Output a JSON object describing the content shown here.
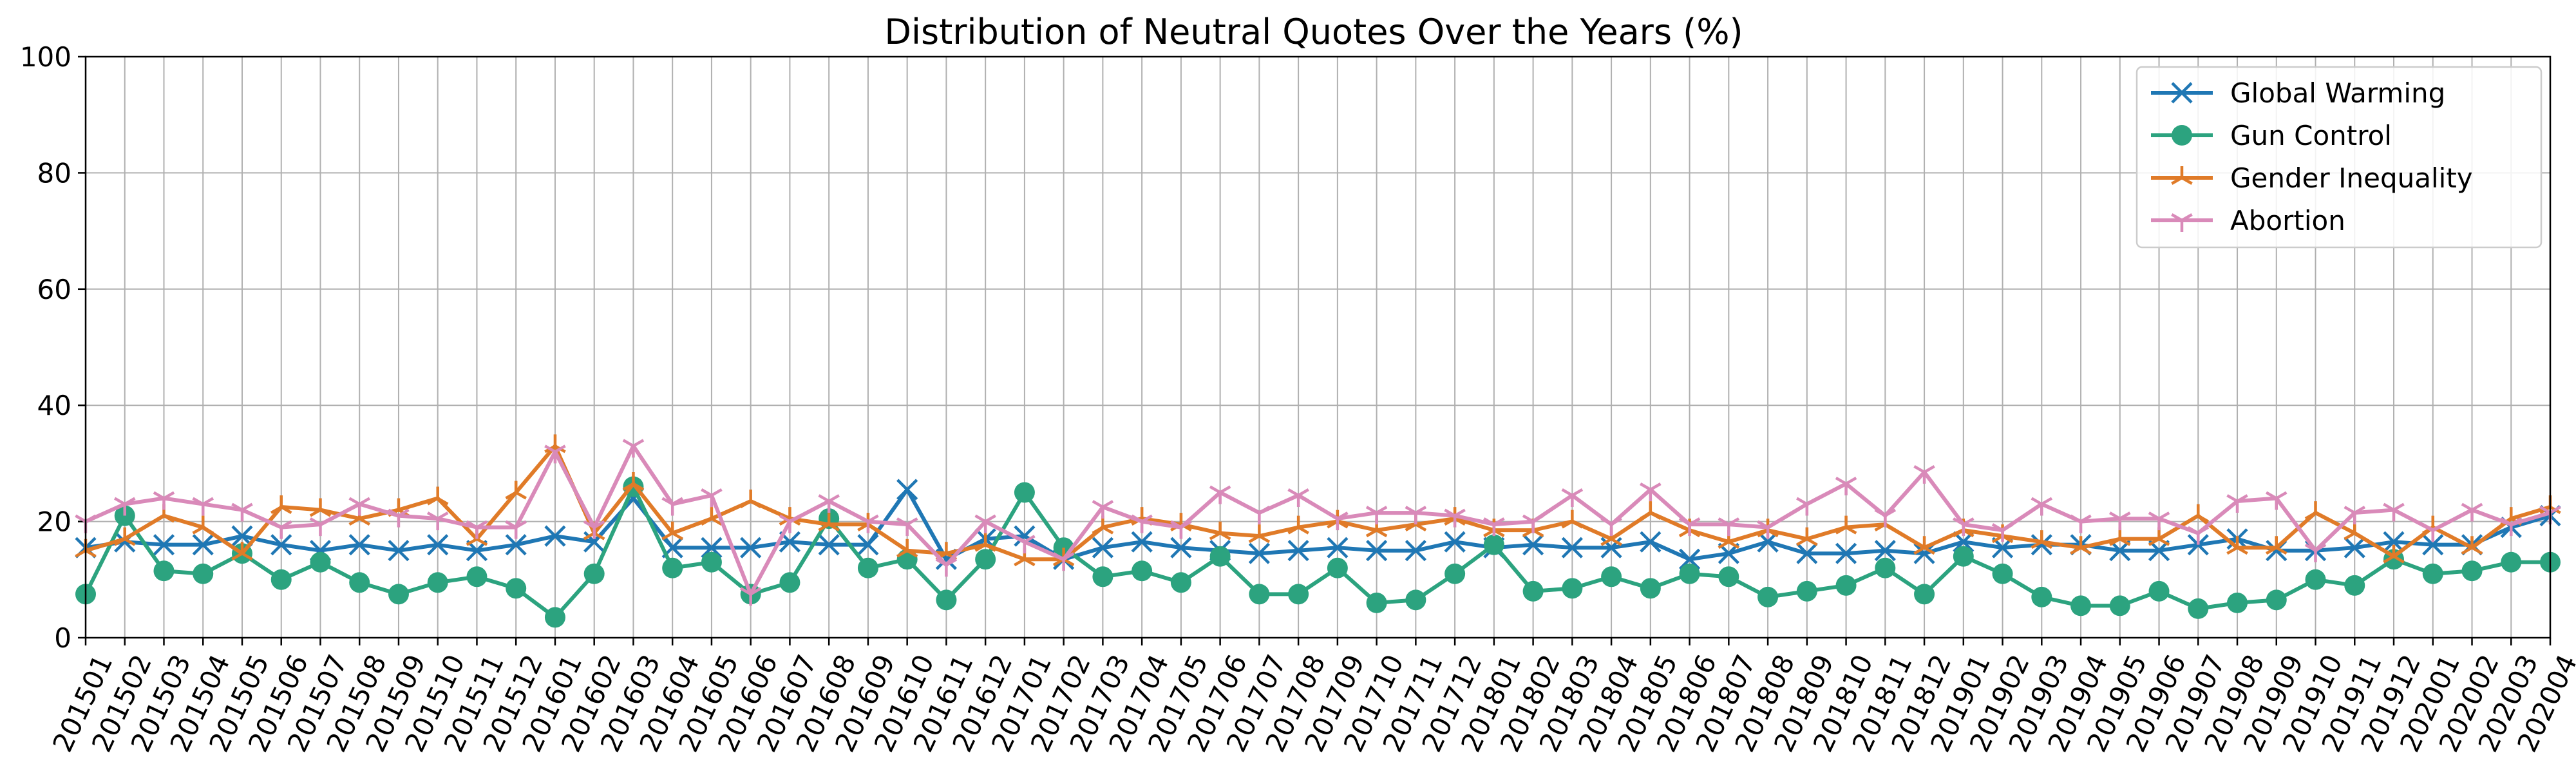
{
  "chart_data": {
    "type": "line",
    "title": "Distribution of Neutral Quotes Over the Years (%)",
    "xlabel": "",
    "ylabel": "",
    "ylim": [
      0,
      100
    ],
    "yticks": [
      0,
      20,
      40,
      60,
      80,
      100
    ],
    "grid": true,
    "legend_position": "top-right",
    "categories": [
      "201501",
      "201502",
      "201503",
      "201504",
      "201505",
      "201506",
      "201507",
      "201508",
      "201509",
      "201510",
      "201511",
      "201512",
      "201601",
      "201602",
      "201603",
      "201604",
      "201605",
      "201606",
      "201607",
      "201608",
      "201609",
      "201610",
      "201611",
      "201612",
      "201701",
      "201702",
      "201703",
      "201704",
      "201705",
      "201706",
      "201707",
      "201708",
      "201709",
      "201710",
      "201711",
      "201712",
      "201801",
      "201802",
      "201803",
      "201804",
      "201805",
      "201806",
      "201807",
      "201808",
      "201809",
      "201810",
      "201811",
      "201812",
      "201901",
      "201902",
      "201903",
      "201904",
      "201905",
      "201906",
      "201907",
      "201908",
      "201909",
      "201910",
      "201911",
      "201912",
      "202001",
      "202002",
      "202003",
      "202004"
    ],
    "series": [
      {
        "name": "Global Warming",
        "color": "#1f77b4",
        "marker": "x",
        "values": [
          15.5,
          16.5,
          16,
          16,
          17.5,
          16,
          15,
          16,
          15,
          16,
          15,
          16,
          17.5,
          16.5,
          24,
          15.5,
          15.5,
          15.5,
          16.5,
          16,
          16,
          25.5,
          13.5,
          17,
          17.5,
          13.5,
          15.5,
          16.5,
          15.5,
          15,
          14.5,
          15,
          15.5,
          15,
          15,
          16.5,
          15.5,
          16,
          15.5,
          15.5,
          16.5,
          13.5,
          14.5,
          16.5,
          14.5,
          14.5,
          15,
          14.5,
          16.5,
          15.5,
          16,
          16,
          15,
          15,
          16,
          17,
          15,
          15,
          15.5,
          16.5,
          16,
          16,
          19,
          21
        ]
      },
      {
        "name": "Gun Control",
        "color": "#2ca37f",
        "marker": "circle",
        "values": [
          7.5,
          21,
          11.5,
          11,
          14.5,
          10,
          13,
          9.5,
          7.5,
          9.5,
          10.5,
          8.5,
          3.5,
          11,
          26,
          12,
          13,
          7.5,
          9.5,
          20.5,
          12,
          13.5,
          6.5,
          13.5,
          25,
          15.5,
          10.5,
          11.5,
          9.5,
          14,
          7.5,
          7.5,
          12,
          6,
          6.5,
          11,
          16,
          8,
          8.5,
          10.5,
          8.5,
          11,
          10.5,
          7,
          8,
          9,
          12,
          7.5,
          14,
          11,
          7,
          5.5,
          5.5,
          8,
          5,
          6,
          6.5,
          10,
          9,
          13.5,
          11,
          11.5,
          13,
          13
        ]
      },
      {
        "name": "Gender Inequality",
        "color": "#e07b28",
        "marker": "tri",
        "values": [
          15,
          17,
          21,
          19,
          14.5,
          22.5,
          22,
          20.5,
          22,
          24,
          17,
          25,
          33,
          18,
          26.5,
          18,
          20.5,
          23.5,
          20.5,
          19.5,
          19.5,
          15,
          14.5,
          16,
          13.5,
          13.5,
          19,
          20.5,
          19.5,
          18,
          17.5,
          19,
          20,
          18.5,
          19.5,
          20.5,
          18.5,
          18.5,
          20,
          17,
          21.5,
          18.5,
          16.5,
          18.5,
          17,
          19,
          19.5,
          15.5,
          18.5,
          17.5,
          16.5,
          15.5,
          17,
          17,
          21,
          15.5,
          15.5,
          21.5,
          18,
          14,
          19,
          15.5,
          20.5,
          22.5
        ]
      },
      {
        "name": "Abortion",
        "color": "#d98ab9",
        "marker": "y",
        "values": [
          20,
          23,
          24,
          23,
          22,
          19,
          19.5,
          23,
          21,
          20.5,
          19,
          19,
          32,
          19,
          33,
          23,
          24.5,
          7.5,
          20,
          23.5,
          20,
          19.5,
          12.5,
          20,
          16.5,
          13.5,
          22.5,
          20,
          19,
          25,
          21.5,
          24.5,
          20.5,
          21.5,
          21.5,
          21,
          19.5,
          20,
          24.5,
          19.5,
          25.5,
          19.5,
          19.5,
          19,
          23,
          26.5,
          21,
          28.5,
          19.5,
          18.5,
          23,
          20,
          20.5,
          20.5,
          18,
          23.5,
          24,
          15,
          21.5,
          22,
          18.5,
          22,
          19.5,
          21.5
        ]
      }
    ]
  }
}
